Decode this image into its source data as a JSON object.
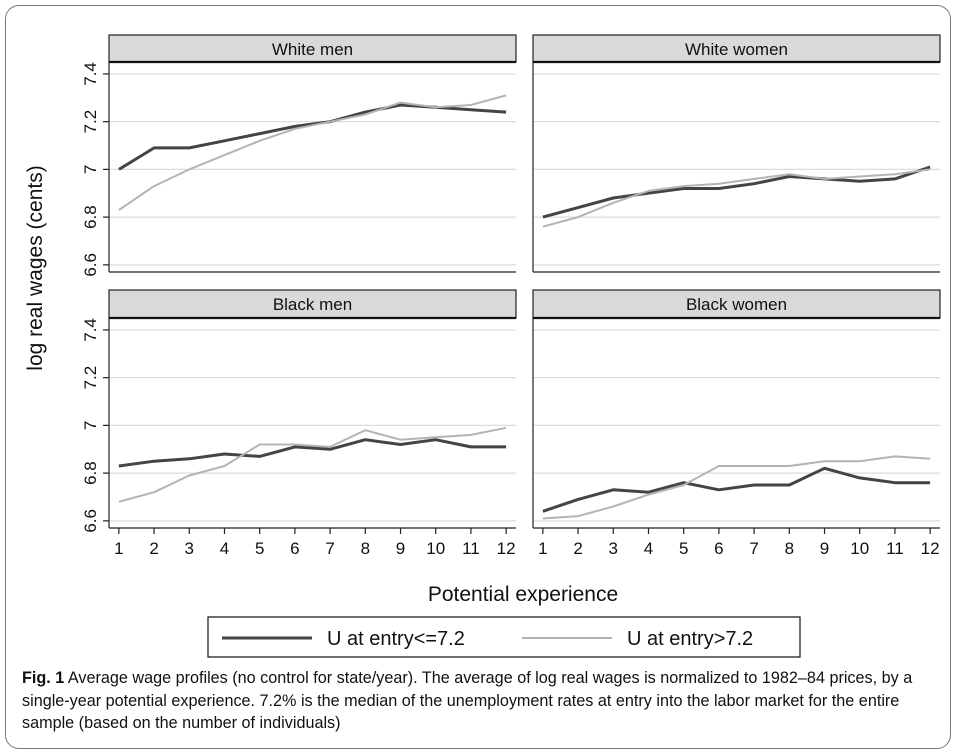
{
  "figure": {
    "caption_label": "Fig. 1",
    "caption_text": "Average wage profiles (no control for state/year). The average of log real wages is normalized to 1982–84 prices, by a single-year potential experience. 7.2% is the median of the unemployment rates at entry into the labor market for the entire sample (based on the number of individuals)"
  },
  "colors": {
    "series_low": "#444444",
    "series_high": "#b4b4b4",
    "strip": "#d9d9d9",
    "grid": "#dcdcdc"
  },
  "chart_data": {
    "type": "line",
    "ylabel": "log real wages (cents)",
    "xlabel": "Potential experience",
    "x": [
      1,
      2,
      3,
      4,
      5,
      6,
      7,
      8,
      9,
      10,
      11,
      12
    ],
    "xticks": [
      "1",
      "2",
      "3",
      "4",
      "5",
      "6",
      "7",
      "8",
      "9",
      "10",
      "11",
      "12"
    ],
    "ylim": [
      6.57,
      7.45
    ],
    "yticks": [
      "6.6",
      "6.8",
      "7",
      "7.2",
      "7.4"
    ],
    "grid": true,
    "legend_position": "bottom",
    "legend": [
      "U at entry<=7.2",
      "U at entry>7.2"
    ],
    "panels": [
      {
        "title": "White men",
        "series": [
          {
            "name": "U at entry<=7.2",
            "values": [
              7.0,
              7.09,
              7.09,
              7.12,
              7.15,
              7.18,
              7.2,
              7.24,
              7.27,
              7.26,
              7.25,
              7.24
            ]
          },
          {
            "name": "U at entry>7.2",
            "values": [
              6.83,
              6.93,
              7.0,
              7.06,
              7.12,
              7.17,
              7.2,
              7.23,
              7.28,
              7.26,
              7.27,
              7.31
            ]
          }
        ]
      },
      {
        "title": "White women",
        "series": [
          {
            "name": "U at entry<=7.2",
            "values": [
              6.8,
              6.84,
              6.88,
              6.9,
              6.92,
              6.92,
              6.94,
              6.97,
              6.96,
              6.95,
              6.96,
              7.01
            ]
          },
          {
            "name": "U at entry>7.2",
            "values": [
              6.76,
              6.8,
              6.86,
              6.91,
              6.93,
              6.94,
              6.96,
              6.98,
              6.96,
              6.97,
              6.98,
              7.0
            ]
          }
        ]
      },
      {
        "title": "Black men",
        "series": [
          {
            "name": "U at entry<=7.2",
            "values": [
              6.83,
              6.85,
              6.86,
              6.88,
              6.87,
              6.91,
              6.9,
              6.94,
              6.92,
              6.94,
              6.91,
              6.91
            ]
          },
          {
            "name": "U at entry>7.2",
            "values": [
              6.68,
              6.72,
              6.79,
              6.83,
              6.92,
              6.92,
              6.91,
              6.98,
              6.94,
              6.95,
              6.96,
              6.99
            ]
          }
        ]
      },
      {
        "title": "Black women",
        "series": [
          {
            "name": "U at entry<=7.2",
            "values": [
              6.64,
              6.69,
              6.73,
              6.72,
              6.76,
              6.73,
              6.75,
              6.75,
              6.82,
              6.78,
              6.76,
              6.76
            ]
          },
          {
            "name": "U at entry>7.2",
            "values": [
              6.61,
              6.62,
              6.66,
              6.71,
              6.75,
              6.83,
              6.83,
              6.83,
              6.85,
              6.85,
              6.87,
              6.86
            ]
          }
        ]
      }
    ]
  }
}
